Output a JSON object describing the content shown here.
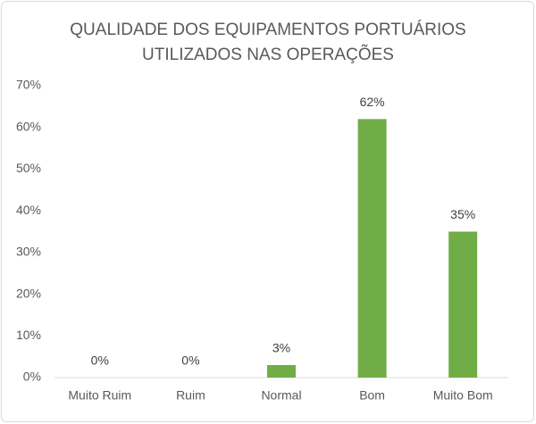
{
  "chart_data": {
    "type": "bar",
    "title": [
      "QUALIDADE DOS EQUIPAMENTOS PORTUÁRIOS",
      "UTILIZADOS NAS OPERAÇÕES"
    ],
    "categories": [
      "Muito Ruim",
      "Ruim",
      "Normal",
      "Bom",
      "Muito Bom"
    ],
    "values": [
      0,
      0,
      3,
      62,
      35
    ],
    "value_labels": [
      "0%",
      "0%",
      "3%",
      "62%",
      "35%"
    ],
    "color": "#70ad47",
    "ylim": [
      0,
      70
    ],
    "yticks": [
      {
        "value": 0,
        "label": "0%"
      },
      {
        "value": 10,
        "label": "10%"
      },
      {
        "value": 20,
        "label": "20%"
      },
      {
        "value": 30,
        "label": "30%"
      },
      {
        "value": 40,
        "label": "40%"
      },
      {
        "value": 50,
        "label": "50%"
      },
      {
        "value": 60,
        "label": "60%"
      },
      {
        "value": 70,
        "label": "70%"
      }
    ],
    "grid": false
  }
}
